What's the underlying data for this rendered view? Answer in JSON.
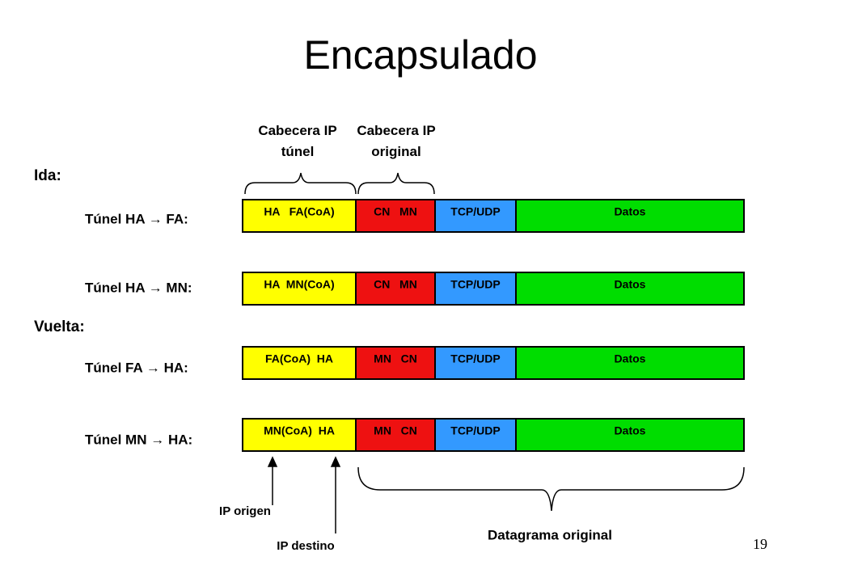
{
  "title": "Encapsulado",
  "column_headers": [
    "Cabecera IP túnel",
    "Cabecera IP original"
  ],
  "sections": [
    {
      "label": "Ida:",
      "rows": [
        {
          "label": "Túnel HA → FA:",
          "cells": [
            "HA   FA(CoA)",
            "CN   MN",
            "TCP/UDP",
            "Datos"
          ]
        },
        {
          "label": "Túnel HA → MN:",
          "cells": [
            "HA  MN(CoA)",
            "CN   MN",
            "TCP/UDP",
            "Datos"
          ]
        }
      ]
    },
    {
      "label": "Vuelta:",
      "rows": [
        {
          "label": "Túnel FA → HA:",
          "cells": [
            "FA(CoA)  HA",
            "MN   CN",
            "TCP/UDP",
            "Datos"
          ]
        },
        {
          "label": "Túnel MN → HA:",
          "cells": [
            "MN(CoA)  HA",
            "MN   CN",
            "TCP/UDP",
            "Datos"
          ]
        }
      ]
    }
  ],
  "annotations": {
    "ip_origin": "IP origen",
    "ip_destination": "IP destino",
    "original_datagram": "Datagrama original"
  },
  "page_number": "19"
}
